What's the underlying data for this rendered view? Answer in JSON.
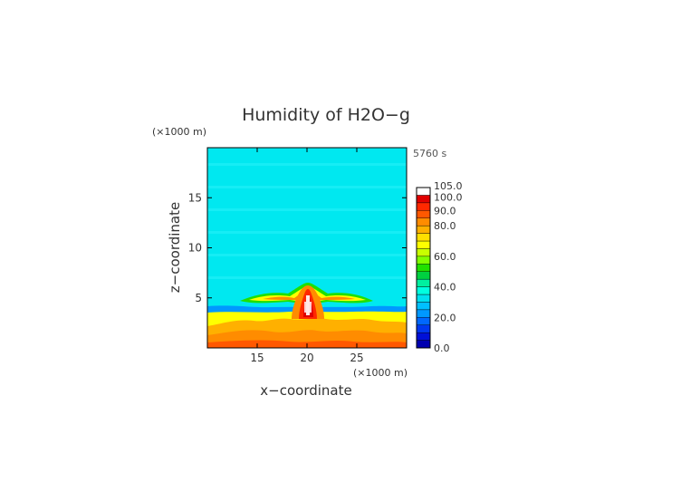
{
  "chart_data": {
    "type": "heatmap",
    "title": "Humidity of H2O−g",
    "time_label": "5760 s",
    "xlabel": "x−coordinate",
    "ylabel": "z−coordinate",
    "x_unit": "(×1000 m)",
    "y_unit": "(×1000 m)",
    "xlim": [
      10,
      30
    ],
    "ylim": [
      0,
      20
    ],
    "x_ticks": [
      15,
      20,
      25
    ],
    "y_ticks": [
      5,
      10,
      15
    ],
    "grid": false,
    "legend_placement": "right",
    "colorbar": {
      "levels": [
        0,
        5,
        10,
        15,
        20,
        25,
        30,
        35,
        40,
        45,
        50,
        55,
        60,
        65,
        70,
        75,
        80,
        85,
        90,
        95,
        100,
        105
      ],
      "colors": [
        "#0000b0",
        "#0010d8",
        "#0038f0",
        "#0068ff",
        "#0098ff",
        "#00c0ff",
        "#00e0f0",
        "#00ffe0",
        "#00f0a0",
        "#00d040",
        "#20e000",
        "#80ff00",
        "#c8ff00",
        "#ffff00",
        "#ffe000",
        "#ffb000",
        "#ff8c00",
        "#ff5800",
        "#ff2800",
        "#e00000",
        "#ffffff"
      ],
      "labels": [
        "0.0",
        "20.0",
        "40.0",
        "60.0",
        "80.0",
        "90.0",
        "100.0",
        "105.0"
      ],
      "label_values": [
        0,
        20,
        40,
        60,
        80,
        90,
        100,
        105
      ]
    },
    "field": {
      "background_value": 42,
      "features": [
        {
          "name": "surface-layer",
          "x": [
            10,
            30
          ],
          "z_top": 3.5,
          "value_range": [
            75,
            95
          ]
        },
        {
          "name": "cloud-core",
          "x": [
            19.5,
            20.5
          ],
          "z": [
            2.5,
            6
          ],
          "value_range": [
            95,
            105
          ]
        },
        {
          "name": "anvil-spread",
          "x": [
            15,
            26
          ],
          "z": [
            3.5,
            6
          ],
          "value_range": [
            60,
            90
          ]
        }
      ]
    }
  }
}
